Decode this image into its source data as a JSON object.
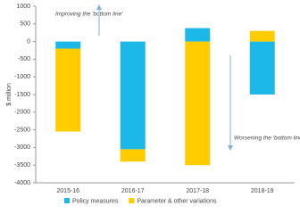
{
  "chart_data": {
    "type": "bar",
    "stacked": true,
    "y_label": "$ million",
    "categories": [
      "2015-16",
      "2016-17",
      "2017-18",
      "2018-19"
    ],
    "series": [
      {
        "name": "Policy measures",
        "color": "#1cb8e8",
        "values": [
          -200,
          -3050,
          380,
          -1500
        ]
      },
      {
        "name": "Parameter & other variations",
        "color": "#ffcc00",
        "values": [
          -2350,
          -350,
          -3500,
          300
        ]
      }
    ],
    "ylim": [
      -4000,
      1000
    ],
    "yticks": [
      -4000,
      -3500,
      -3000,
      -2500,
      -2000,
      -1500,
      -1000,
      -500,
      0,
      500,
      1000
    ],
    "annotations": [
      {
        "text": "Improving the 'bottom line'",
        "direction": "up"
      },
      {
        "text": "Worsening the 'bottom line'",
        "direction": "down"
      }
    ],
    "legend": "bottom"
  }
}
